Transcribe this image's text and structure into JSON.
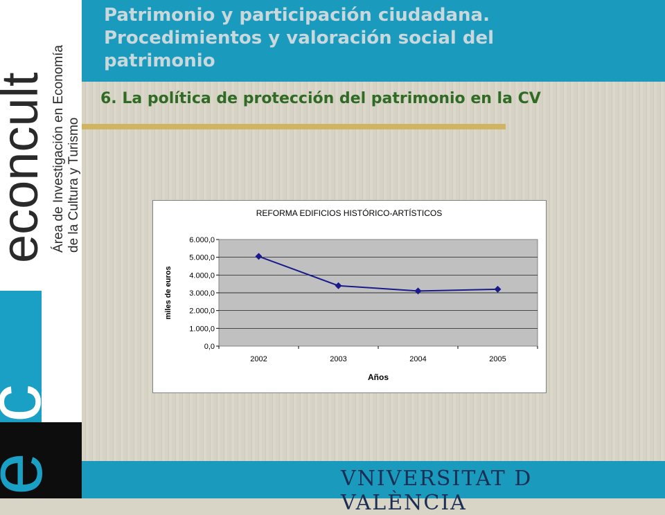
{
  "header": {
    "title_line1": "Patrimonio y participación ciudadana.",
    "title_line2": "Procedimientos y valoración social del",
    "title_line3": "patrimonio"
  },
  "section": {
    "heading": "6. La política de protección del patrimonio en la CV"
  },
  "branding": {
    "logo_text": "econcult",
    "letters": [
      "e",
      "c",
      "t"
    ],
    "subtitle_line1": "Área de Investigación en Economía",
    "subtitle_line2": "de la Cultura y Turismo"
  },
  "footer": {
    "university": "VNIVERSITAT D VALÈNCIA"
  },
  "colors": {
    "teal": "#1a9bbd",
    "line": "#1a1a8c",
    "plot_bg": "#c0c0c0",
    "rule": "#d1b462",
    "section": "#2f6b24"
  },
  "chart_data": {
    "type": "line",
    "title": "REFORMA EDIFICIOS HISTÓRICO-ARTÍSTICOS",
    "xlabel": "Años",
    "ylabel": "miles de euros",
    "categories": [
      "2002",
      "2003",
      "2004",
      "2005"
    ],
    "series": [
      {
        "values": [
          5050,
          3400,
          3100,
          3200
        ]
      }
    ],
    "ylim": [
      0,
      6000
    ],
    "yticks": [
      "0,0",
      "1.000,0",
      "2.000,0",
      "3.000,0",
      "4.000,0",
      "5.000,0",
      "6.000,0"
    ],
    "grid": true,
    "legend": "none"
  }
}
